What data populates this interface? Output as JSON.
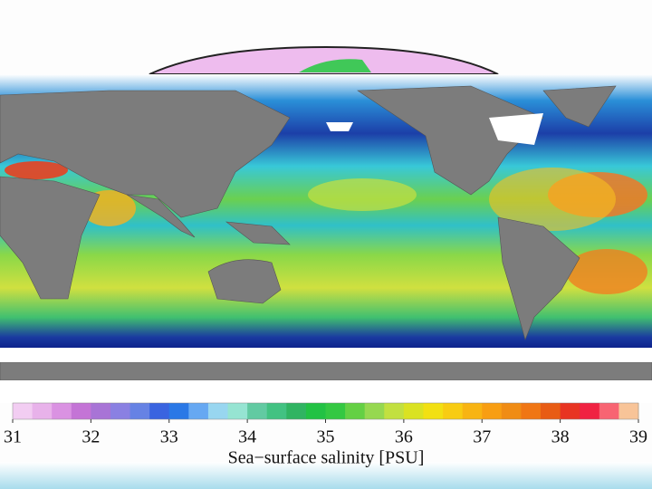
{
  "colorbar": {
    "title": "Sea−surface salinity [PSU]",
    "lim": [
      31,
      39
    ],
    "ticks": [
      31,
      32,
      33,
      34,
      35,
      36,
      37,
      38,
      39
    ],
    "colors": [
      "#f2cdf2",
      "#e8b2ea",
      "#da92e2",
      "#c474d6",
      "#a874d6",
      "#8a80e2",
      "#6682e4",
      "#3a64e0",
      "#2a78e6",
      "#66a8f2",
      "#98d6f0",
      "#96e4d2",
      "#62caa2",
      "#42c282",
      "#30b462",
      "#22c244",
      "#34c842",
      "#64d044",
      "#96d850",
      "#c2e040",
      "#dae222",
      "#f2e012",
      "#f8cc12",
      "#f8b412",
      "#f89e12",
      "#f08c14",
      "#f07614",
      "#e85c14",
      "#e83422",
      "#f02242",
      "#f86472",
      "#f8c498"
    ]
  }
}
